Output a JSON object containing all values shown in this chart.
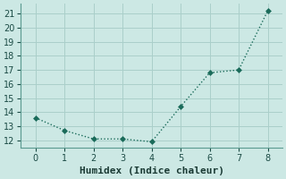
{
  "x": [
    0,
    1,
    2,
    3,
    4,
    5,
    6,
    7,
    8
  ],
  "y": [
    13.6,
    12.7,
    12.1,
    12.1,
    11.9,
    14.4,
    16.8,
    17.0,
    21.2
  ],
  "line_color": "#1a6b5a",
  "marker_color": "#1a6b5a",
  "bg_color": "#cce8e4",
  "grid_color": "#aacfca",
  "xlabel": "Humidex (Indice chaleur)",
  "xlim": [
    -0.5,
    8.5
  ],
  "ylim": [
    11.5,
    21.7
  ],
  "yticks": [
    12,
    13,
    14,
    15,
    16,
    17,
    18,
    19,
    20,
    21
  ],
  "xticks": [
    0,
    1,
    2,
    3,
    4,
    5,
    6,
    7,
    8
  ],
  "xlabel_fontsize": 8,
  "tick_fontsize": 7,
  "line_width": 1.0,
  "marker_size": 3
}
